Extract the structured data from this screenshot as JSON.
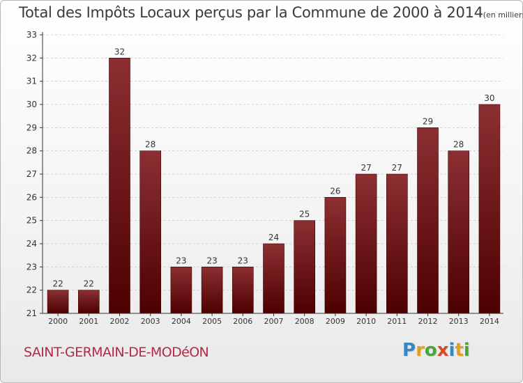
{
  "title": {
    "main": "Total des Impôts Locaux perçus par la Commune de 2000 à 2014",
    "unit": "(en milliers d'€)"
  },
  "commune": "SAINT-GERMAIN-DE-MODéON",
  "brand": {
    "letters": [
      "P",
      "r",
      "o",
      "x",
      "i",
      "t",
      "i"
    ],
    "colors": [
      "#2f88c9",
      "#e0a020",
      "#4aa53c",
      "#d64a2a",
      "#2f88c9",
      "#e0a020",
      "#4aa53c"
    ]
  },
  "colors": {
    "bar_top": "#8c2f33",
    "bar_bottom": "#4d0000",
    "axis": "#333333",
    "grid": "#d0d0d0"
  },
  "chart_data": {
    "type": "bar",
    "categories": [
      "2000",
      "2001",
      "2002",
      "2003",
      "2004",
      "2005",
      "2006",
      "2007",
      "2008",
      "2009",
      "2010",
      "2011",
      "2012",
      "2013",
      "2014"
    ],
    "values": [
      22,
      22,
      32,
      28,
      23,
      23,
      23,
      24,
      25,
      26,
      27,
      27,
      29,
      28,
      30
    ],
    "ylim": [
      21,
      33
    ],
    "yticks": [
      21,
      22,
      23,
      24,
      25,
      26,
      27,
      28,
      29,
      30,
      31,
      32,
      33
    ],
    "grid": "horizontal dashed",
    "data_labels": true
  }
}
